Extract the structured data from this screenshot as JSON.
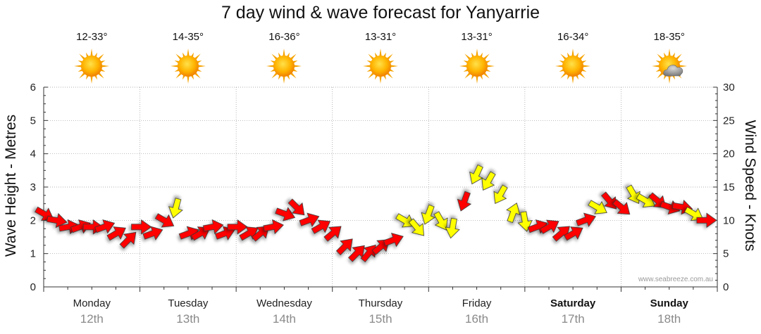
{
  "title": "7 day wind & wave forecast for Yanyarrie",
  "days": [
    {
      "name": "Monday",
      "date": "12th",
      "temp": "12-33°",
      "icon": "sun-icon",
      "bold": false
    },
    {
      "name": "Tuesday",
      "date": "13th",
      "temp": "14-35°",
      "icon": "sun-icon",
      "bold": false
    },
    {
      "name": "Wednesday",
      "date": "14th",
      "temp": "16-36°",
      "icon": "sun-icon",
      "bold": false
    },
    {
      "name": "Thursday",
      "date": "15th",
      "temp": "13-31°",
      "icon": "sun-icon",
      "bold": false
    },
    {
      "name": "Friday",
      "date": "16th",
      "temp": "13-31°",
      "icon": "sun-icon",
      "bold": false
    },
    {
      "name": "Saturday",
      "date": "17th",
      "temp": "16-34°",
      "icon": "sun-icon",
      "bold": true
    },
    {
      "name": "Sunday",
      "date": "18th",
      "temp": "18-35°",
      "icon": "partly-cloudy-icon",
      "bold": true
    }
  ],
  "watermark": "www.seabreeze.com.au",
  "colors": {
    "arrow_strong": "#ff0000",
    "arrow_light": "#ffff00",
    "grid": "#999999",
    "axis": "#333333"
  },
  "chart_data": {
    "type": "line",
    "title": "7 day wind & wave forecast for Yanyarrie",
    "ylabel_left": "Wave Height - Metres",
    "ylabel_right": "Wind Speed - Knots",
    "ylim_left": [
      0,
      6
    ],
    "ylim_right": [
      0,
      30
    ],
    "yticks_left": [
      "0",
      "1",
      "2",
      "3",
      "4",
      "5",
      "6"
    ],
    "yticks_right": [
      "0",
      "5",
      "10",
      "15",
      "20",
      "25",
      "30"
    ],
    "grid": true,
    "x_unit": "hours from Monday 00:00",
    "xlim": [
      0,
      168
    ],
    "categories": [
      "Monday 12th",
      "Tuesday 13th",
      "Wednesday 14th",
      "Thursday 15th",
      "Friday 16th",
      "Saturday 17th",
      "Sunday 18th"
    ],
    "series": [
      {
        "name": "Wind speed (knots) with direction",
        "x": [
          0,
          3,
          6,
          9,
          12,
          15,
          18,
          21,
          24,
          27,
          30,
          33,
          36,
          39,
          42,
          45,
          48,
          51,
          54,
          57,
          60,
          63,
          66,
          69,
          72,
          75,
          78,
          81,
          84,
          87,
          90,
          93,
          96,
          99,
          102,
          105,
          108,
          111,
          114,
          117,
          120,
          123,
          126,
          129,
          132,
          135,
          138,
          141,
          144,
          147,
          150,
          153,
          156,
          159,
          162,
          165
        ],
        "values": [
          11,
          10,
          9,
          9,
          9,
          9,
          8,
          7,
          9,
          8,
          10,
          12,
          8,
          8,
          9,
          8,
          9,
          8,
          8,
          9,
          11,
          12,
          10,
          9,
          8,
          6,
          5,
          5,
          6,
          7,
          10,
          9,
          11,
          10,
          9,
          13,
          17,
          16,
          14,
          11,
          10,
          9,
          9,
          8,
          8,
          10,
          12,
          13,
          12,
          14,
          13,
          13,
          12,
          12,
          11,
          10
        ],
        "direction_deg": [
          300,
          280,
          260,
          250,
          270,
          250,
          240,
          225,
          270,
          250,
          300,
          15,
          250,
          240,
          260,
          250,
          270,
          240,
          230,
          260,
          290,
          315,
          250,
          240,
          230,
          225,
          225,
          220,
          230,
          250,
          300,
          320,
          20,
          330,
          10,
          20,
          25,
          30,
          30,
          200,
          350,
          250,
          240,
          230,
          240,
          250,
          300,
          320,
          310,
          330,
          300,
          310,
          290,
          280,
          300,
          270
        ],
        "strength": [
          "strong",
          "strong",
          "strong",
          "strong",
          "strong",
          "strong",
          "strong",
          "strong",
          "strong",
          "strong",
          "strong",
          "light",
          "strong",
          "strong",
          "strong",
          "strong",
          "strong",
          "strong",
          "strong",
          "strong",
          "strong",
          "strong",
          "strong",
          "strong",
          "strong",
          "strong",
          "strong",
          "strong",
          "strong",
          "strong",
          "light",
          "light",
          "light",
          "light",
          "light",
          "strong",
          "light",
          "light",
          "light",
          "light",
          "light",
          "strong",
          "strong",
          "strong",
          "strong",
          "strong",
          "light",
          "strong",
          "strong",
          "light",
          "light",
          "strong",
          "strong",
          "strong",
          "light",
          "strong"
        ]
      }
    ]
  }
}
